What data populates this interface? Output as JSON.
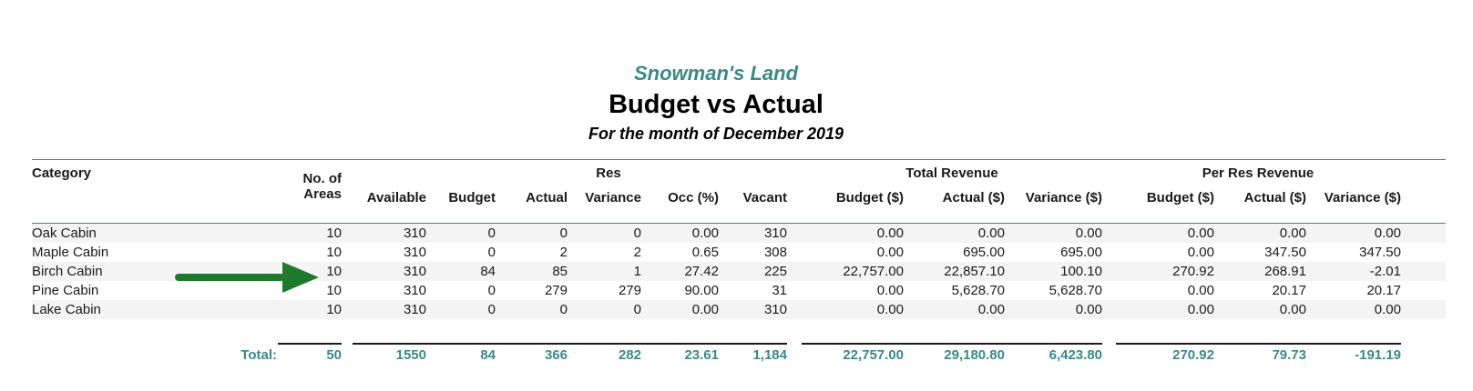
{
  "report": {
    "company": "Snowman's Land",
    "title": "Budget vs Actual",
    "subtitle": "For the month of December 2019"
  },
  "headers": {
    "category": "Category",
    "areas_line1": "No. of",
    "areas_line2": "Areas",
    "available": "Available",
    "res_group": "Res",
    "res_budget": "Budget",
    "res_actual": "Actual",
    "res_variance": "Variance",
    "occ": "Occ (%)",
    "vacant": "Vacant",
    "rev_group": "Total Revenue",
    "rev_budget": "Budget ($)",
    "rev_actual": "Actual ($)",
    "rev_variance": "Variance ($)",
    "per_group": "Per Res Revenue",
    "per_budget": "Budget ($)",
    "per_actual": "Actual ($)",
    "per_variance": "Variance ($)"
  },
  "rows": [
    {
      "category": "Oak Cabin",
      "areas": "10",
      "available": "310",
      "res_budget": "0",
      "res_actual": "0",
      "res_variance": "0",
      "occ": "0.00",
      "vacant": "310",
      "rev_budget": "0.00",
      "rev_actual": "0.00",
      "rev_variance": "0.00",
      "per_budget": "0.00",
      "per_actual": "0.00",
      "per_variance": "0.00"
    },
    {
      "category": "Maple Cabin",
      "areas": "10",
      "available": "310",
      "res_budget": "0",
      "res_actual": "2",
      "res_variance": "2",
      "occ": "0.65",
      "vacant": "308",
      "rev_budget": "0.00",
      "rev_actual": "695.00",
      "rev_variance": "695.00",
      "per_budget": "0.00",
      "per_actual": "347.50",
      "per_variance": "347.50"
    },
    {
      "category": "Birch Cabin",
      "areas": "10",
      "available": "310",
      "res_budget": "84",
      "res_actual": "85",
      "res_variance": "1",
      "occ": "27.42",
      "vacant": "225",
      "rev_budget": "22,757.00",
      "rev_actual": "22,857.10",
      "rev_variance": "100.10",
      "per_budget": "270.92",
      "per_actual": "268.91",
      "per_variance": "-2.01"
    },
    {
      "category": "Pine Cabin",
      "areas": "10",
      "available": "310",
      "res_budget": "0",
      "res_actual": "279",
      "res_variance": "279",
      "occ": "90.00",
      "vacant": "31",
      "rev_budget": "0.00",
      "rev_actual": "5,628.70",
      "rev_variance": "5,628.70",
      "per_budget": "0.00",
      "per_actual": "20.17",
      "per_variance": "20.17"
    },
    {
      "category": "Lake Cabin",
      "areas": "10",
      "available": "310",
      "res_budget": "0",
      "res_actual": "0",
      "res_variance": "0",
      "occ": "0.00",
      "vacant": "310",
      "rev_budget": "0.00",
      "rev_actual": "0.00",
      "rev_variance": "0.00",
      "per_budget": "0.00",
      "per_actual": "0.00",
      "per_variance": "0.00"
    }
  ],
  "totals": {
    "label": "Total:",
    "areas": "50",
    "available": "1550",
    "res_budget": "84",
    "res_actual": "366",
    "res_variance": "282",
    "occ": "23.61",
    "vacant": "1,184",
    "rev_budget": "22,757.00",
    "rev_actual": "29,180.80",
    "rev_variance": "6,423.80",
    "per_budget": "270.92",
    "per_actual": "79.73",
    "per_variance": "-191.19"
  },
  "colors": {
    "accent": "#3a8a8a",
    "arrow": "#1f7a2e"
  },
  "annotation": {
    "arrow_icon": "right-arrow-icon",
    "points_to_row": "Birch Cabin"
  }
}
